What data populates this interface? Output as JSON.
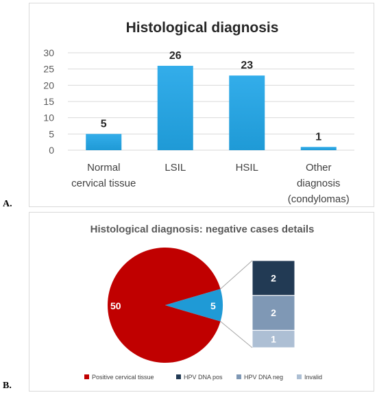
{
  "panel_labels": {
    "a": "A.",
    "b": "B."
  },
  "colors": {
    "bar": "#1f9ad6",
    "axis_text": "#595959",
    "grid": "#d9d9d9",
    "pie_positive": "#c00000",
    "pie_negative": "#1f9ad6",
    "hpv_pos": "#223a54",
    "hpv_neg": "#7f98b5",
    "invalid": "#adbfd4",
    "connector": "#a6a6a6"
  },
  "chart_data": [
    {
      "type": "bar",
      "title": "Histological diagnosis",
      "xlabel": "",
      "ylabel": "",
      "categories": [
        [
          "Normal",
          "cervical tissue"
        ],
        [
          "LSIL"
        ],
        [
          "HSIL"
        ],
        [
          "Other",
          "diagnosis",
          "(condylomas)"
        ]
      ],
      "values": [
        5,
        26,
        23,
        1
      ],
      "data_labels": [
        "5",
        "26",
        "23",
        "1"
      ],
      "ylim": [
        0,
        30
      ],
      "yticks": [
        0,
        5,
        10,
        15,
        20,
        25,
        30
      ],
      "grid": true,
      "legend": "none"
    },
    {
      "type": "pie",
      "title": "Histological diagnosis: negative cases details",
      "slices": [
        {
          "label": "Positive cervical tissue",
          "value": 50,
          "display": "50"
        },
        {
          "label": "",
          "value": 5,
          "display": "5"
        }
      ],
      "breakdown": [
        {
          "label": "HPV DNA pos",
          "value": 2,
          "display": "2"
        },
        {
          "label": "HPV DNA neg",
          "value": 2,
          "display": "2"
        },
        {
          "label": "Invalid",
          "value": 1,
          "display": "1"
        }
      ],
      "legend": [
        "Positive cervical tissue",
        "HPV DNA pos",
        "HPV DNA neg",
        "Invalid"
      ],
      "legend_position": "bottom"
    }
  ]
}
